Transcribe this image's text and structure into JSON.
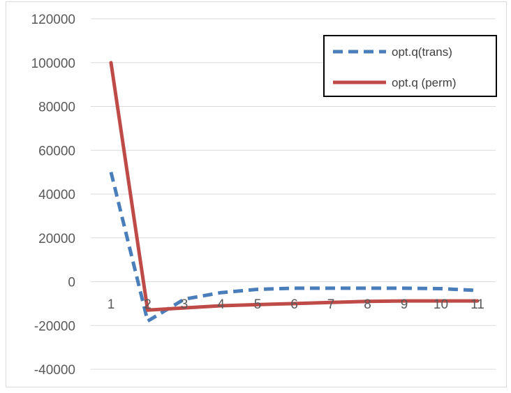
{
  "chart_data": {
    "type": "line",
    "title": "",
    "xlabel": "",
    "ylabel": "",
    "x": [
      1,
      2,
      3,
      4,
      5,
      6,
      7,
      8,
      9,
      10,
      11
    ],
    "x_tick_labels": [
      "1",
      "2",
      "3",
      "4",
      "5",
      "6",
      "7",
      "8",
      "9",
      "10",
      "11"
    ],
    "ylim": [
      -40000,
      120000
    ],
    "y_tick_values": [
      120000,
      100000,
      80000,
      60000,
      40000,
      20000,
      0,
      -20000,
      -40000
    ],
    "y_tick_labels": [
      "120000",
      "100000",
      "80000",
      "60000",
      "40000",
      "20000",
      "0",
      "-20000",
      "-40000"
    ],
    "grid": "horizontal",
    "legend_position": "top-right",
    "series": [
      {
        "name": "opt.q(trans)",
        "color": "#4a7ebb",
        "style": "dashed",
        "values": [
          50000,
          -18000,
          -8000,
          -5000,
          -3500,
          -3000,
          -3000,
          -3000,
          -3000,
          -3200,
          -4000
        ]
      },
      {
        "name": "opt.q (perm)",
        "color": "#be4b48",
        "style": "solid",
        "values": [
          100000,
          -13000,
          -12000,
          -11000,
          -10500,
          -10000,
          -9500,
          -9000,
          -8800,
          -8800,
          -8800
        ]
      }
    ]
  }
}
